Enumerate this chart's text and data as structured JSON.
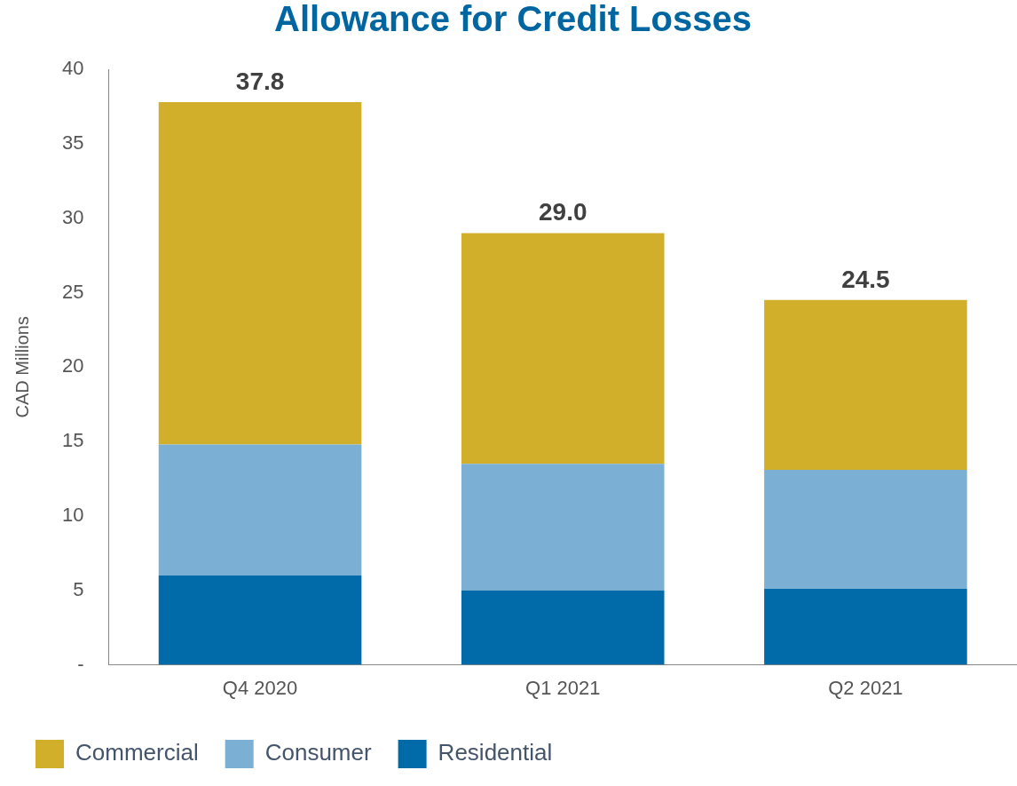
{
  "chart_data": {
    "type": "bar",
    "title": "Allowance for Credit Losses",
    "ylabel": "CAD Millions",
    "categories": [
      "Q4 2020",
      "Q1 2021",
      "Q2 2021"
    ],
    "series": [
      {
        "name": "Residential",
        "color": "#006ba8",
        "values": [
          6.0,
          5.0,
          5.1
        ]
      },
      {
        "name": "Consumer",
        "color": "#7bafd4",
        "values": [
          8.8,
          8.5,
          8.0
        ]
      },
      {
        "name": "Commercial",
        "color": "#d1af2b",
        "values": [
          23.0,
          15.5,
          11.4
        ]
      }
    ],
    "stacked": true,
    "ylim": [
      0,
      40
    ],
    "yticks": [
      {
        "value": 0,
        "label": "-"
      },
      5,
      10,
      15,
      20,
      25,
      30,
      35,
      40
    ],
    "grid": false,
    "legend": "bottom left",
    "totals": [
      "37.8",
      "29.0",
      "24.5"
    ]
  }
}
